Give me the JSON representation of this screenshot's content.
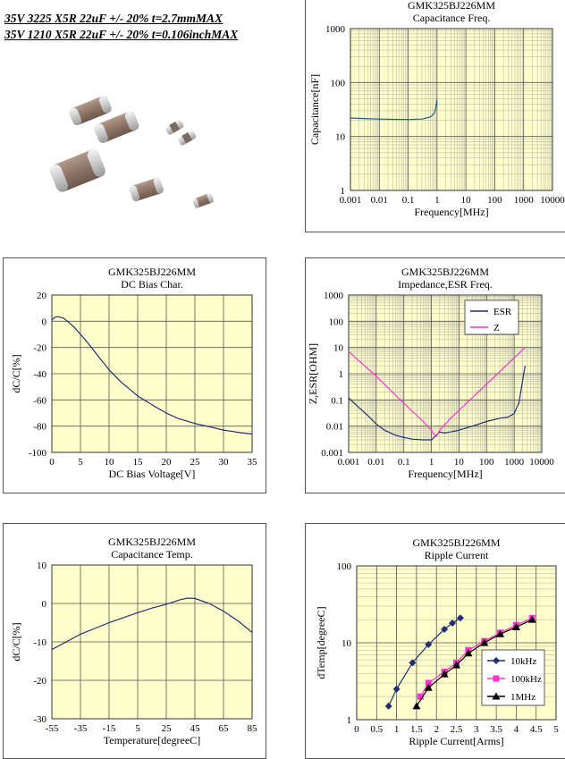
{
  "header": {
    "line1": "35V 3225 X5R 22uF +/- 20% t=2.7mmMAX",
    "line2": "35V 1210 X5R 22uF +/- 20% t=0.106inchMAX"
  },
  "colors": {
    "plot_bg": "#ffffcc",
    "navy": "#1f2f75",
    "magenta": "#ff33cc",
    "black": "#000000"
  },
  "chart_data": [
    {
      "id": "cap_freq",
      "type": "line",
      "title": "GMK325BJ226MM",
      "subtitle": "Capacitance Freq.",
      "xlabel": "Frequency[MHz]",
      "ylabel": "Capacitance[nF]",
      "xscale": "log",
      "yscale": "log",
      "xlim": [
        0.001,
        10000
      ],
      "ylim": [
        1,
        1000
      ],
      "xticks": [
        0.001,
        0.01,
        0.1,
        1,
        10,
        100,
        1000,
        10000
      ],
      "xticklabels": [
        "0.001",
        "0.01",
        "0.1",
        "1",
        "10",
        "100",
        "1000",
        "10000"
      ],
      "yticks": [
        1,
        10,
        100,
        1000
      ],
      "yticklabels": [
        "1",
        "10",
        "100",
        "1000"
      ],
      "grid": true,
      "series": [
        {
          "color": "#1f5f8f",
          "x": [
            0.001,
            0.003,
            0.01,
            0.03,
            0.1,
            0.3,
            0.6,
            0.8,
            0.9,
            1.0
          ],
          "y": [
            22,
            21.5,
            21,
            20.8,
            20.6,
            21,
            23,
            27,
            33,
            48
          ]
        }
      ]
    },
    {
      "id": "dc_bias",
      "type": "line",
      "title": "GMK325BJ226MM",
      "subtitle": "DC Bias Char.",
      "xlabel": "DC Bias Voltage[V]",
      "ylabel": "dC/C[%]",
      "xscale": "linear",
      "yscale": "linear",
      "xlim": [
        0,
        35
      ],
      "ylim": [
        -100,
        20
      ],
      "xticks": [
        0,
        5,
        10,
        15,
        20,
        25,
        30,
        35
      ],
      "xticklabels": [
        "0",
        "5",
        "10",
        "15",
        "20",
        "25",
        "30",
        "35"
      ],
      "yticks": [
        -100,
        -80,
        -60,
        -40,
        -20,
        0,
        20
      ],
      "yticklabels": [
        "-100",
        "-80",
        "-60",
        "-40",
        "-20",
        "0",
        "20"
      ],
      "grid": true,
      "series": [
        {
          "color": "#1f2f75",
          "x": [
            0,
            0.5,
            1,
            2,
            3,
            4,
            5,
            6,
            8,
            10,
            12,
            15,
            18,
            20,
            22,
            25,
            28,
            30,
            33,
            35
          ],
          "y": [
            1,
            3,
            3.5,
            2.5,
            -1,
            -5,
            -10,
            -15,
            -26,
            -37,
            -46,
            -57,
            -65,
            -70,
            -74,
            -78,
            -81,
            -83,
            -85,
            -86
          ]
        }
      ]
    },
    {
      "id": "impedance",
      "type": "line",
      "title": "GMK325BJ226MM",
      "subtitle": "Impedance,ESR Freq.",
      "xlabel": "Frequency[MHz]",
      "ylabel": "Z,ESR[OHM]",
      "xscale": "log",
      "yscale": "log",
      "xlim": [
        0.001,
        10000
      ],
      "ylim": [
        0.001,
        1000
      ],
      "xticks": [
        0.001,
        0.01,
        0.1,
        1,
        10,
        100,
        1000,
        10000
      ],
      "xticklabels": [
        "0.001",
        "0.01",
        "0.1",
        "1",
        "10",
        "100",
        "1000",
        "10000"
      ],
      "yticks": [
        0.001,
        0.01,
        0.1,
        1,
        10,
        100,
        1000
      ],
      "yticklabels": [
        "0.001",
        "0.01",
        "0.1",
        "1",
        "10",
        "100",
        "1000"
      ],
      "grid": true,
      "legend": "top-left",
      "series": [
        {
          "name": "ESR",
          "color": "#1f2f75",
          "x": [
            0.001,
            0.002,
            0.005,
            0.01,
            0.02,
            0.05,
            0.1,
            0.2,
            0.5,
            1,
            1.5,
            2,
            3,
            5,
            10,
            30,
            100,
            300,
            600,
            1000,
            1500,
            2000,
            2500
          ],
          "y": [
            0.12,
            0.06,
            0.025,
            0.012,
            0.007,
            0.0045,
            0.0037,
            0.0032,
            0.003,
            0.003,
            0.0045,
            0.006,
            0.0055,
            0.006,
            0.007,
            0.01,
            0.015,
            0.02,
            0.022,
            0.03,
            0.08,
            0.5,
            2
          ]
        },
        {
          "name": "Z",
          "color": "#ff33cc",
          "x": [
            0.001,
            0.01,
            0.1,
            0.5,
            1,
            1.2,
            1.5,
            2,
            5,
            10,
            100,
            1000,
            2500
          ],
          "y": [
            7,
            0.8,
            0.075,
            0.015,
            0.007,
            0.005,
            0.004,
            0.007,
            0.02,
            0.04,
            0.4,
            4,
            10
          ]
        }
      ]
    },
    {
      "id": "cap_temp",
      "type": "line",
      "title": "GMK325BJ226MM",
      "subtitle": "Capacitance Temp.",
      "xlabel": "Temperature[degreeC]",
      "ylabel": "dC/C[%]",
      "xscale": "linear",
      "yscale": "linear",
      "xlim": [
        -55,
        85
      ],
      "ylim": [
        -30,
        10
      ],
      "xticks": [
        -55,
        -35,
        -15,
        5,
        25,
        45,
        65,
        85
      ],
      "xticklabels": [
        "-55",
        "-35",
        "-15",
        "5",
        "25",
        "45",
        "65",
        "85"
      ],
      "yticks": [
        -30,
        -20,
        -10,
        0,
        10
      ],
      "yticklabels": [
        "-30",
        "-20",
        "-10",
        "0",
        "10"
      ],
      "grid": true,
      "series": [
        {
          "color": "#1f2f75",
          "x": [
            -55,
            -45,
            -35,
            -25,
            -15,
            -5,
            5,
            15,
            25,
            35,
            40,
            45,
            55,
            65,
            75,
            85
          ],
          "y": [
            -12,
            -10,
            -8,
            -6.5,
            -5,
            -3.7,
            -2.4,
            -1.2,
            -0.2,
            1,
            1.4,
            1.3,
            0,
            -2,
            -4.5,
            -7.5
          ]
        }
      ]
    },
    {
      "id": "ripple",
      "type": "line",
      "title": "GMK325BJ226MM",
      "subtitle": "Ripple Current",
      "xlabel": "Ripple Current[Arms]",
      "ylabel": "dTemp[degreeC]",
      "xscale": "linear",
      "yscale": "log",
      "xlim": [
        0,
        5
      ],
      "ylim": [
        1,
        100
      ],
      "xticks": [
        0,
        0.5,
        1,
        1.5,
        2,
        2.5,
        3,
        3.5,
        4,
        4.5,
        5
      ],
      "xticklabels": [
        "0",
        "0.5",
        "1",
        "1.5",
        "2",
        "2.5",
        "3",
        "3.5",
        "4",
        "4.5",
        "5"
      ],
      "yticks": [
        1,
        10,
        100
      ],
      "yticklabels": [
        "1",
        "10",
        "100"
      ],
      "grid": true,
      "legend": "bottom-right",
      "series": [
        {
          "name": "10kHz",
          "color": "#1f2f75",
          "marker": "diamond",
          "x": [
            0.8,
            1.0,
            1.4,
            1.8,
            2.2,
            2.4,
            2.6
          ],
          "y": [
            1.5,
            2.5,
            5.5,
            9.5,
            15,
            18,
            21
          ]
        },
        {
          "name": "100kHz",
          "color": "#ff33cc",
          "marker": "square",
          "x": [
            1.6,
            1.8,
            2.2,
            2.5,
            2.8,
            3.2,
            3.6,
            4.0,
            4.4
          ],
          "y": [
            2.0,
            3.0,
            4.2,
            5.5,
            8,
            10.5,
            13.5,
            17,
            21
          ]
        },
        {
          "name": "1MHz",
          "color": "#000000",
          "marker": "triangle",
          "x": [
            1.5,
            1.8,
            2.2,
            2.5,
            2.8,
            3.2,
            3.6,
            4.0,
            4.4
          ],
          "y": [
            1.5,
            2.6,
            3.9,
            5.1,
            7.3,
            10,
            13,
            16,
            20
          ]
        }
      ]
    }
  ]
}
